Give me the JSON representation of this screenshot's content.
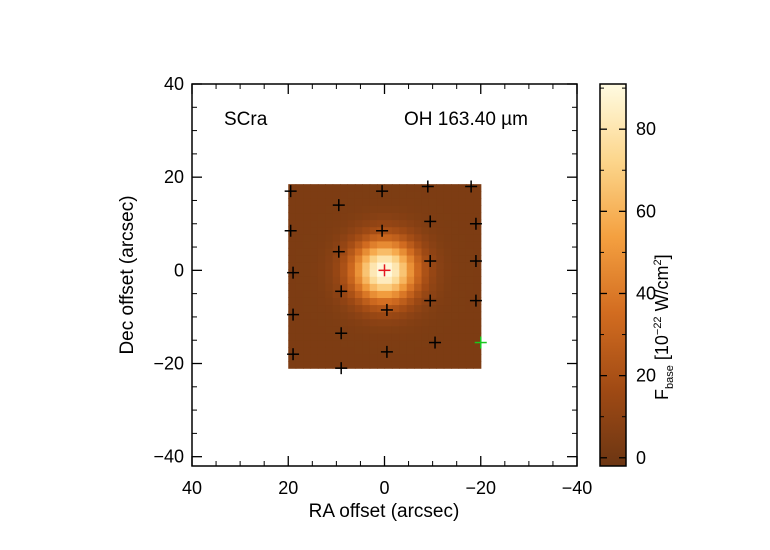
{
  "chart_data": {
    "type": "heatmap",
    "title": "",
    "annotations": {
      "left": "SCra",
      "right": "OH 163.40 µm"
    },
    "xlabel": "RA offset (arcsec)",
    "ylabel": "Dec offset (arcsec)",
    "xlim": [
      40,
      -40
    ],
    "ylim": [
      -42,
      40
    ],
    "xticks": [
      40,
      20,
      0,
      -20,
      -40
    ],
    "xtick_labels": [
      "40",
      "20",
      "0",
      "−20",
      "−40"
    ],
    "yticks": [
      -40,
      -20,
      0,
      20,
      40
    ],
    "ytick_labels": [
      "−40",
      "−20",
      "0",
      "20",
      "40"
    ],
    "grid": false,
    "map": {
      "x_range": [
        20,
        -20
      ],
      "y_range": [
        -21,
        18.5
      ],
      "peak": [
        0,
        0
      ],
      "peak_value": 92,
      "background_value": 4,
      "fwhm_arcsec": 11
    },
    "colorbar": {
      "label_main": "F",
      "label_sub": "base",
      "label_rest": " [10",
      "label_exp": "−22",
      "label_unit": " W/cm",
      "label_exp2": "2",
      "label_close": "]",
      "range": [
        -2,
        91
      ],
      "ticks": [
        0,
        20,
        40,
        60,
        80
      ],
      "tick_labels": [
        "0",
        "20",
        "40",
        "60",
        "80"
      ]
    },
    "spaxels": [
      {
        "x": 19.5,
        "y": 17
      },
      {
        "x": 9.5,
        "y": 14
      },
      {
        "x": 0.5,
        "y": 17
      },
      {
        "x": -9,
        "y": 18
      },
      {
        "x": -18,
        "y": 18
      },
      {
        "x": 19.5,
        "y": 8.5
      },
      {
        "x": 9.5,
        "y": 4
      },
      {
        "x": 0.5,
        "y": 8.5
      },
      {
        "x": -9.5,
        "y": 10.5
      },
      {
        "x": -19,
        "y": 10
      },
      {
        "x": 19,
        "y": -0.5
      },
      {
        "x": 0,
        "y": 0,
        "color": "#e4161f"
      },
      {
        "x": -9.5,
        "y": 2
      },
      {
        "x": -19,
        "y": 2
      },
      {
        "x": 19,
        "y": -9.5
      },
      {
        "x": 9,
        "y": -4.5
      },
      {
        "x": -0.5,
        "y": -8.5
      },
      {
        "x": -9.5,
        "y": -6.5
      },
      {
        "x": -19,
        "y": -6.5
      },
      {
        "x": 19,
        "y": -18
      },
      {
        "x": 9,
        "y": -13.5
      },
      {
        "x": -0.5,
        "y": -17.5
      },
      {
        "x": -10.5,
        "y": -15.5
      },
      {
        "x": -20,
        "y": -15.5,
        "color": "#19c81e"
      },
      {
        "x": 9,
        "y": -21
      }
    ]
  }
}
